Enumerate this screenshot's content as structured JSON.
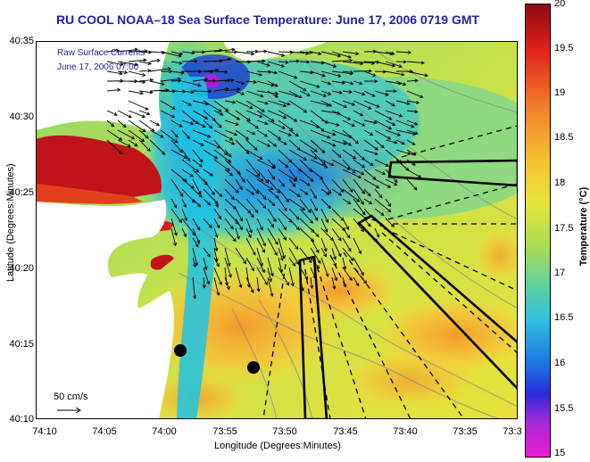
{
  "title": "RU COOL  NOAA–18  Sea Surface Temperature:  June 17, 2006 0719 GMT",
  "overlay": {
    "line1": "Raw Surface Currents",
    "line2": "June 17, 2006 07:00"
  },
  "scale_label": "50 cm/s",
  "axes": {
    "xlabel": "Longitude (Degrees:Minutes)",
    "ylabel": "Latitude (Degrees:Minutes)",
    "x_ticks": [
      "74:10",
      "74:05",
      "74:00",
      "73:55",
      "73:50",
      "73:45",
      "73:40",
      "73:35",
      "73:3"
    ],
    "y_ticks": [
      "40:35",
      "40:30",
      "40:25",
      "40:20",
      "40:15",
      "40:10"
    ]
  },
  "colorbar": {
    "label": "Temperature (°C)",
    "ticks": [
      "20",
      "19.5",
      "19",
      "18.5",
      "18",
      "17.5",
      "17",
      "16.5",
      "16",
      "15.5",
      "15"
    ],
    "range": [
      15,
      20
    ]
  },
  "colors": {
    "title": "#1f1fb0",
    "warm": "#c0141a",
    "cool": "#1aa7e0",
    "land": "#ffffff"
  }
}
